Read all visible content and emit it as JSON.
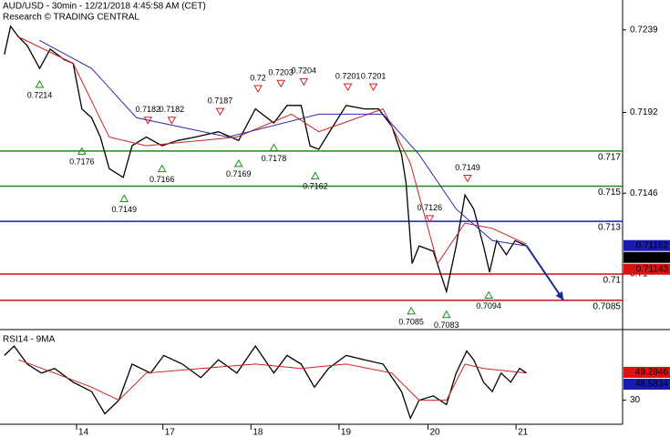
{
  "chart_data": [
    {
      "type": "line",
      "title": "AUD/USD - 30min - 12/21/2018 4:45:58 AM (CET)",
      "subtitle": "Research © TRADING CENTRAL",
      "xlim": [
        0.13,
        7.2
      ],
      "ylim": [
        0.7072,
        0.7256
      ],
      "yticks": [
        0.7239,
        0.7192,
        0.7146,
        0.71
      ],
      "series": [
        {
          "color": "#000000",
          "x": [
            0.18,
            0.25,
            0.34,
            0.44,
            0.58,
            0.7,
            0.86,
            0.96,
            1.06,
            1.17,
            1.27,
            1.37,
            1.53,
            1.63,
            1.79,
            1.97,
            2.15,
            2.35,
            2.61,
            2.84,
            3.03,
            3.24,
            3.39,
            3.55,
            3.65,
            3.75,
            3.91,
            4.06,
            4.27,
            4.43,
            4.58,
            4.69,
            4.74,
            4.81,
            4.89,
            5.05,
            5.2,
            5.31,
            5.41,
            5.51,
            5.62,
            5.69,
            5.77,
            5.88,
            5.98,
            6.11
          ],
          "values": [
            0.7225,
            0.7241,
            0.7235,
            0.723,
            0.7217,
            0.7228,
            0.7222,
            0.722,
            0.7194,
            0.7189,
            0.7178,
            0.716,
            0.7155,
            0.7173,
            0.7178,
            0.7173,
            0.7176,
            0.7178,
            0.7181,
            0.7176,
            0.7194,
            0.7186,
            0.7196,
            0.7196,
            0.7173,
            0.7171,
            0.7184,
            0.7196,
            0.7194,
            0.7194,
            0.7184,
            0.7168,
            0.7152,
            0.7106,
            0.7116,
            0.7113,
            0.709,
            0.7116,
            0.7145,
            0.7137,
            0.7116,
            0.7101,
            0.7119,
            0.7111,
            0.7119,
            0.7116
          ]
        },
        {
          "color": "#cc2222",
          "x": [
            0.34,
            0.96,
            1.37,
            1.79,
            2.82,
            3.44,
            3.75,
            4.48,
            4.79,
            5.1,
            5.41,
            5.72,
            6.11
          ],
          "values": [
            0.7235,
            0.722,
            0.7178,
            0.7173,
            0.7178,
            0.7191,
            0.7181,
            0.7194,
            0.7163,
            0.7106,
            0.7129,
            0.7126,
            0.7117
          ]
        },
        {
          "color": "#2a2aa8",
          "x": [
            0.58,
            1.17,
            1.68,
            2.72,
            3.75,
            4.48,
            4.89,
            5.31,
            5.72,
            6.11
          ],
          "values": [
            0.7233,
            0.7217,
            0.7189,
            0.7178,
            0.7191,
            0.7191,
            0.7168,
            0.7137,
            0.7119,
            0.7116
          ]
        }
      ],
      "levels": [
        {
          "value": 0.717,
          "color": "#1a8c1a"
        },
        {
          "value": 0.715,
          "color": "#1a8c1a"
        },
        {
          "value": 0.713,
          "color": "#1a1ab4"
        },
        {
          "value": 0.71,
          "color": "#cc1111"
        },
        {
          "value": 0.7085,
          "color": "#cc1111"
        }
      ],
      "price_tags": [
        {
          "value": 0.71162,
          "color": "#1a1ab4"
        },
        {
          "value": 0.7115,
          "color": "#000000"
        },
        {
          "value": 0.71143,
          "color": "#dd1111"
        }
      ],
      "annotations": [
        {
          "x": 0.58,
          "value": 0.7214,
          "kind": "low"
        },
        {
          "x": 1.06,
          "value": 0.7176,
          "kind": "low"
        },
        {
          "x": 1.54,
          "value": 0.7149,
          "kind": "low"
        },
        {
          "x": 1.97,
          "value": 0.7166,
          "kind": "low"
        },
        {
          "x": 2.84,
          "value": 0.7169,
          "kind": "low"
        },
        {
          "x": 3.24,
          "value": 0.7178,
          "kind": "low"
        },
        {
          "x": 3.71,
          "value": 0.7162,
          "kind": "low"
        },
        {
          "x": 4.8,
          "value": 0.7085,
          "kind": "low"
        },
        {
          "x": 5.2,
          "value": 0.7083,
          "kind": "low"
        },
        {
          "x": 5.68,
          "value": 0.7094,
          "kind": "low"
        },
        {
          "x": 1.81,
          "value": 0.7182,
          "kind": "high"
        },
        {
          "x": 2.08,
          "value": 0.7182,
          "kind": "high"
        },
        {
          "x": 2.63,
          "value": 0.7187,
          "kind": "high"
        },
        {
          "x": 3.06,
          "value": 0.72,
          "kind": "high"
        },
        {
          "x": 3.32,
          "value": 0.7203,
          "kind": "high"
        },
        {
          "x": 3.58,
          "value": 0.7204,
          "kind": "high"
        },
        {
          "x": 4.08,
          "value": 0.7201,
          "kind": "high"
        },
        {
          "x": 4.37,
          "value": 0.7201,
          "kind": "high"
        },
        {
          "x": 5.01,
          "value": 0.7126,
          "kind": "high"
        },
        {
          "x": 5.44,
          "value": 0.7149,
          "kind": "high"
        }
      ],
      "arrow": {
        "color": "#1a2a8c",
        "x": [
          6.11,
          6.53
        ],
        "values": [
          0.7116,
          0.7085
        ]
      }
    },
    {
      "type": "line",
      "title": "RSI14 - 9MA",
      "xlim": [
        0.13,
        7.2
      ],
      "ylim": [
        14,
        77
      ],
      "yticks": [
        30
      ],
      "xticks": [
        {
          "value": 1,
          "label": "14"
        },
        {
          "value": 1.98,
          "label": "17"
        },
        {
          "value": 2.98,
          "label": "18"
        },
        {
          "value": 3.98,
          "label": "19"
        },
        {
          "value": 4.99,
          "label": "20"
        },
        {
          "value": 5.99,
          "label": "21"
        }
      ],
      "series": [
        {
          "color": "#000000",
          "x": [
            0.18,
            0.29,
            0.44,
            0.6,
            0.75,
            0.96,
            1.17,
            1.32,
            1.48,
            1.63,
            1.84,
            1.99,
            2.2,
            2.41,
            2.61,
            2.82,
            3.03,
            3.24,
            3.39,
            3.55,
            3.7,
            3.86,
            4.06,
            4.27,
            4.48,
            4.69,
            4.79,
            4.89,
            5.05,
            5.2,
            5.31,
            5.43,
            5.51,
            5.62,
            5.72,
            5.82,
            5.93,
            6.03,
            6.11
          ],
          "values": [
            61,
            67.5,
            55,
            48.8,
            52,
            42.5,
            36,
            20.6,
            30,
            55,
            48.8,
            61,
            55,
            45.6,
            58,
            48.8,
            67.5,
            48.8,
            61,
            55,
            39,
            52,
            61,
            58,
            55,
            36,
            17.5,
            30,
            33,
            27,
            48.8,
            64,
            58,
            42.5,
            36,
            48.8,
            42.5,
            52,
            48.8
          ]
        },
        {
          "color": "#cc2222",
          "x": [
            0.34,
            0.75,
            1.17,
            1.48,
            1.79,
            2.41,
            3.03,
            3.55,
            4.06,
            4.58,
            4.89,
            5.2,
            5.41,
            5.62,
            6.11
          ],
          "values": [
            58,
            48.8,
            39,
            30,
            48.8,
            52,
            55,
            52,
            55,
            48.8,
            30,
            30,
            55,
            52,
            48.8
          ]
        }
      ],
      "price_tags": [
        {
          "value": 49.2846,
          "color": "#dd1111"
        },
        {
          "value": 48.5834,
          "color": "#1a1ab4"
        }
      ]
    }
  ]
}
